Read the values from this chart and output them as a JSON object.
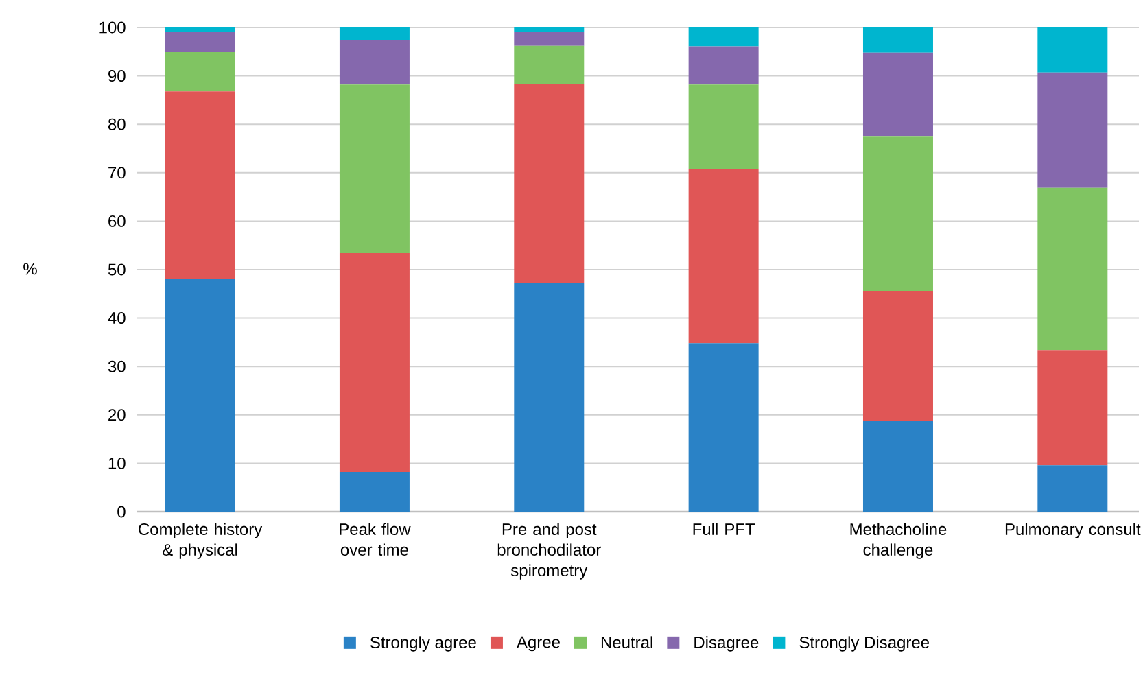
{
  "chart_data": {
    "type": "bar",
    "stacked": true,
    "ylabel": "%",
    "categories": [
      "Complete history & physical",
      "Peak flow over time",
      "Pre and post bronchodilator spirometry",
      "Full PFT",
      "Methacholine challenge",
      "Pulmonary consult"
    ],
    "series": [
      {
        "name": "Strongly agree",
        "color": "#2a82c6",
        "values": [
          48,
          8.2,
          47.3,
          34.8,
          18.8,
          9.6
        ]
      },
      {
        "name": "Agree",
        "color": "#e05656",
        "values": [
          38.8,
          45.2,
          41.1,
          36,
          26.8,
          23.8
        ]
      },
      {
        "name": "Neutral",
        "color": "#80c462",
        "values": [
          8.1,
          34.8,
          7.8,
          17.4,
          32,
          33.5
        ]
      },
      {
        "name": "Disagree",
        "color": "#8568ad",
        "values": [
          4.1,
          9.2,
          2.8,
          7.9,
          17.2,
          23.8
        ]
      },
      {
        "name": "Strongly Disagree",
        "color": "#00b5cf",
        "values": [
          1,
          2.6,
          1,
          3.9,
          5.2,
          9.3
        ]
      }
    ],
    "ylim": [
      0,
      100
    ],
    "yticks": [
      0,
      10,
      20,
      30,
      40,
      50,
      60,
      70,
      80,
      90,
      100
    ],
    "grid": "y",
    "legend": "bottom"
  }
}
